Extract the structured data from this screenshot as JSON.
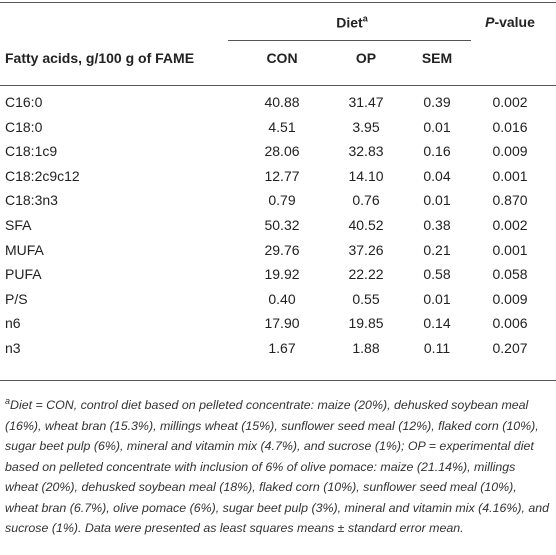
{
  "header": {
    "diet": "Diet",
    "diet_note": "a",
    "p_value": "P",
    "p_value_rest": "-value",
    "row_label": "Fatty acids, g/100 g of FAME",
    "columns": [
      "CON",
      "OP",
      "SEM"
    ]
  },
  "table": {
    "rows": [
      [
        "C16:0",
        "40.88",
        "31.47",
        "0.39",
        "0.002"
      ],
      [
        "C18:0",
        "4.51",
        "3.95",
        "0.01",
        "0.016"
      ],
      [
        "C18:1c9",
        "28.06",
        "32.83",
        "0.16",
        "0.009"
      ],
      [
        "C18:2c9c12",
        "12.77",
        "14.10",
        "0.04",
        "0.001"
      ],
      [
        "C18:3n3",
        "0.79",
        "0.76",
        "0.01",
        "0.870"
      ],
      [
        "SFA",
        "50.32",
        "40.52",
        "0.38",
        "0.002"
      ],
      [
        "MUFA",
        "29.76",
        "37.26",
        "0.21",
        "0.001"
      ],
      [
        "PUFA",
        "19.92",
        "22.22",
        "0.58",
        "0.058"
      ],
      [
        "P/S",
        "0.40",
        "0.55",
        "0.01",
        "0.009"
      ],
      [
        "n6",
        "17.90",
        "19.85",
        "0.14",
        "0.006"
      ],
      [
        "n3",
        "1.67",
        "1.88",
        "0.11",
        "0.207"
      ]
    ]
  },
  "footnote": {
    "marker": "a",
    "text": "Diet = CON, control diet based on pelleted concentrate: maize (20%), dehusked soybean meal (16%), wheat bran (15.3%), millings wheat (15%), sunflower seed meal (12%), flaked corn (10%), sugar beet pulp (6%), mineral and vitamin mix (4.7%), and sucrose (1%); OP = experimental diet based on pelleted concentrate with inclusion of 6% of olive pomace: maize (21.14%), millings wheat (20%), dehusked soybean meal (18%), flaked corn (10%), sunflower seed meal (10%), wheat bran (6.7%), olive pomace (6%), sugar beet pulp (3%), mineral and vitamin mix (4.16%), and sucrose (1%). Data were presented as least squares means ± standard error mean."
  }
}
